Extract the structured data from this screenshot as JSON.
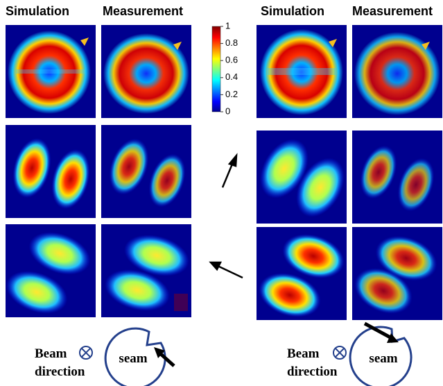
{
  "left": {
    "headers": [
      "Simulation",
      "Measurement"
    ]
  },
  "right": {
    "headers": [
      "Simulation",
      "Measurement"
    ]
  },
  "colorbar": {
    "ticks": [
      0,
      0.2,
      0.4,
      0.6,
      0.8,
      1
    ]
  },
  "legend_left": {
    "label_lines": [
      "Beam",
      "direction"
    ],
    "circle_label": "seam"
  },
  "legend_right": {
    "label_lines": [
      "Beam",
      "direction"
    ],
    "circle_label": "seam"
  }
}
